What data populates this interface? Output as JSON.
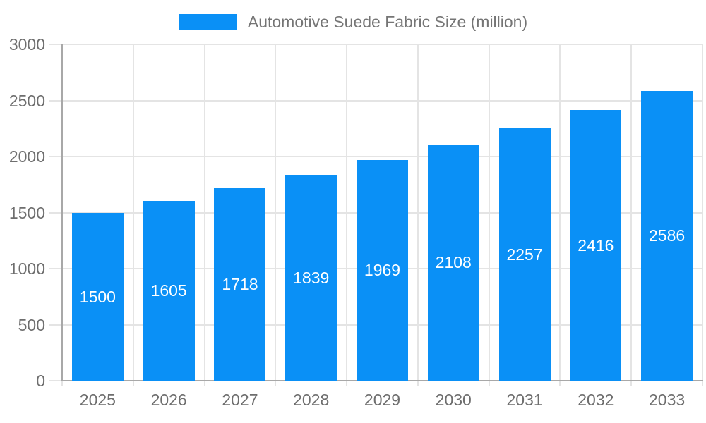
{
  "legend": {
    "label": "Automotive Suede Fabric Size (million)"
  },
  "chart_data": {
    "type": "bar",
    "title": "Automotive Suede Fabric Size (million)",
    "categories": [
      "2025",
      "2026",
      "2027",
      "2028",
      "2029",
      "2030",
      "2031",
      "2032",
      "2033"
    ],
    "values": [
      1500,
      1605,
      1718,
      1839,
      1969,
      2108,
      2257,
      2416,
      2586
    ],
    "series": [
      {
        "name": "Automotive Suede Fabric Size (million)",
        "values": [
          1500,
          1605,
          1718,
          1839,
          1969,
          2108,
          2257,
          2416,
          2586
        ]
      }
    ],
    "xlabel": "",
    "ylabel": "",
    "ylim": [
      0,
      3000
    ],
    "yticks": [
      0,
      500,
      1000,
      1500,
      2000,
      2500,
      3000
    ],
    "grid": true,
    "legend_position": "top-center",
    "bar_label_position": "inside-center",
    "colors": {
      "bar": "#0a90f6",
      "grid": "#e4e4e4",
      "axis": "#a8a8a8",
      "tick_text": "#6e6e6e",
      "title_text": "#757575",
      "bar_label_text": "#ffffff",
      "background": "#ffffff"
    }
  }
}
